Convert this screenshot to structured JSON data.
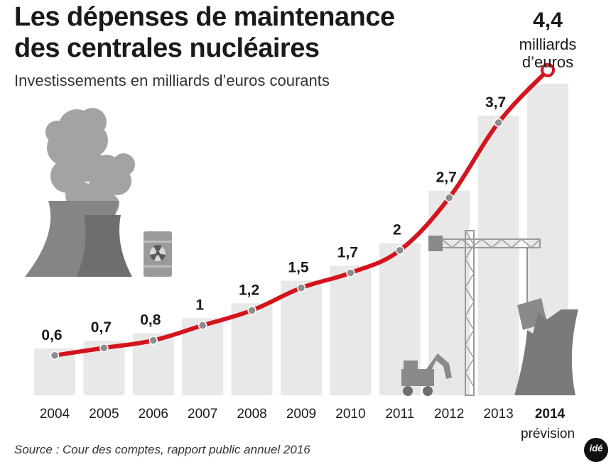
{
  "title_line1": "Les dépenses de maintenance",
  "title_line2": "des centrales nucléaires",
  "subtitle": "Investissements en milliards d’euros courants",
  "source": "Source : Cour des comptes, rapport public annuel 2016",
  "logo_text": "idé",
  "colors": {
    "line": "#d3141d",
    "bar": "#e8e8e8",
    "point": "#8c8c8c",
    "illustration": "#8a8a8a"
  },
  "chart_data": {
    "type": "line",
    "categories": [
      "2004",
      "2005",
      "2006",
      "2007",
      "2008",
      "2009",
      "2010",
      "2011",
      "2012",
      "2013",
      "2014"
    ],
    "values": [
      0.6,
      0.7,
      0.8,
      1,
      1.2,
      1.5,
      1.7,
      2,
      2.7,
      3.7,
      4.4
    ],
    "value_labels": [
      "0,6",
      "0,7",
      "0,8",
      "1",
      "1,2",
      "1,5",
      "1,7",
      "2",
      "2,7",
      "3,7",
      "4,4"
    ],
    "highlight_category": "2014",
    "highlight_note": "prévision",
    "highlight_unit_line1": "milliards",
    "highlight_unit_line2": "d’euros",
    "background_bars": true,
    "title": "Les dépenses de maintenance des centrales nucléaires",
    "xlabel": "",
    "ylabel": ""
  }
}
